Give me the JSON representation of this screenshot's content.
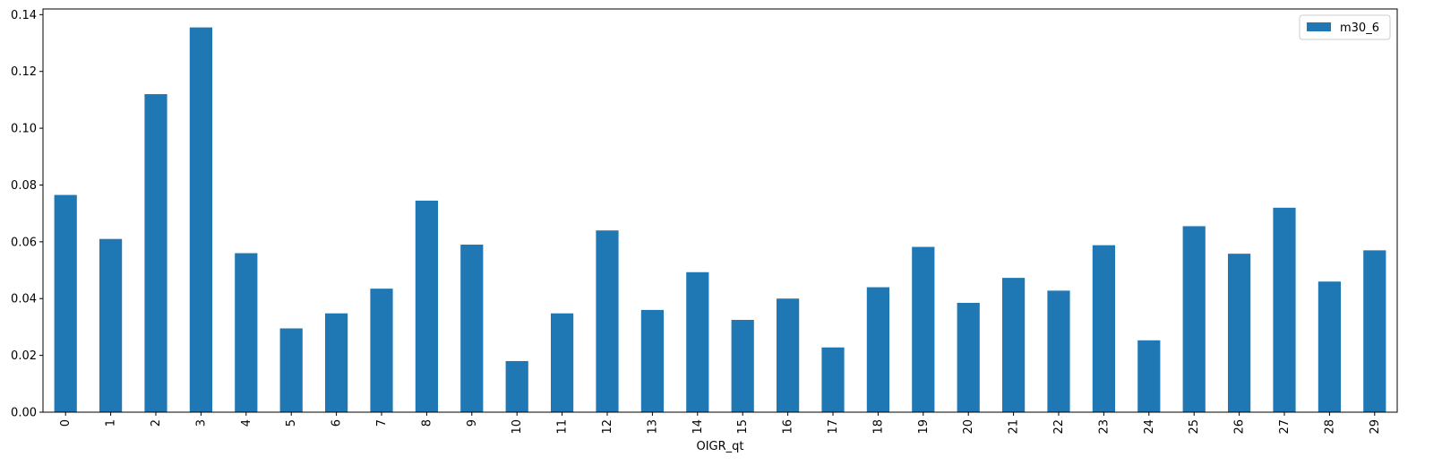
{
  "chart_data": {
    "type": "bar",
    "categories": [
      "0",
      "1",
      "2",
      "3",
      "4",
      "5",
      "6",
      "7",
      "8",
      "9",
      "10",
      "11",
      "12",
      "13",
      "14",
      "15",
      "16",
      "17",
      "18",
      "19",
      "20",
      "21",
      "22",
      "23",
      "24",
      "25",
      "26",
      "27",
      "28",
      "29"
    ],
    "series": [
      {
        "name": "m30_6",
        "color": "#1f77b4",
        "values": [
          0.0765,
          0.061,
          0.112,
          0.1355,
          0.056,
          0.0295,
          0.0348,
          0.0435,
          0.0745,
          0.059,
          0.018,
          0.0348,
          0.064,
          0.036,
          0.0493,
          0.0325,
          0.04,
          0.0228,
          0.044,
          0.0582,
          0.0385,
          0.0473,
          0.0428,
          0.0588,
          0.0253,
          0.0655,
          0.0558,
          0.072,
          0.046,
          0.057
        ]
      }
    ],
    "xlabel": "OIGR_qt",
    "ylabel": "",
    "ylim": [
      0,
      0.142
    ],
    "yticks": [
      0.0,
      0.02,
      0.04,
      0.06,
      0.08,
      0.1,
      0.12,
      0.14
    ],
    "ytick_labels": [
      "0.00",
      "0.02",
      "0.04",
      "0.06",
      "0.08",
      "0.10",
      "0.12",
      "0.14"
    ],
    "legend_position": "top-right",
    "grid": false
  }
}
